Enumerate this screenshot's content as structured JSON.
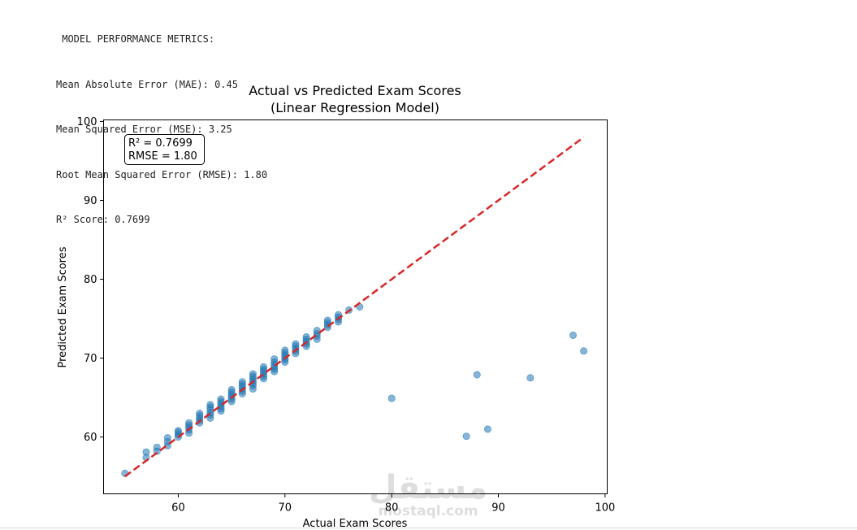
{
  "console": {
    "lines": [
      " MODEL PERFORMANCE METRICS:",
      "Mean Absolute Error (MAE): 0.45",
      "Mean Squared Error (MSE): 3.25",
      "Root Mean Squared Error (RMSE): 1.80",
      "R² Score: 0.7699"
    ]
  },
  "chart_data": {
    "type": "scatter",
    "title": "Actual vs Predicted Exam Scores",
    "subtitle": "(Linear Regression Model)",
    "xlabel": "Actual Exam Scores",
    "ylabel": "Predicted Exam Scores",
    "xlim": [
      53,
      100.2
    ],
    "ylim": [
      52.8,
      100.2
    ],
    "xticks": [
      60,
      70,
      80,
      90,
      100
    ],
    "yticks": [
      60,
      70,
      80,
      90,
      100
    ],
    "grid": false,
    "annotation": [
      "R² = 0.7699",
      "RMSE = 1.80"
    ],
    "point_color": "#1f77b4",
    "line_color": "#d62728",
    "reference_line": {
      "x": [
        55,
        98
      ],
      "y": [
        55,
        98
      ]
    },
    "watermark": {
      "arabic": "مستقل",
      "latin": "mostaql.com"
    },
    "points": [
      [
        55,
        55.4
      ],
      [
        57,
        57.4
      ],
      [
        57,
        58.1
      ],
      [
        58,
        58.2
      ],
      [
        58,
        58.7
      ],
      [
        59,
        58.9
      ],
      [
        59,
        59.4
      ],
      [
        59,
        59.9
      ],
      [
        60,
        60.0
      ],
      [
        60,
        60.3
      ],
      [
        60,
        60.6
      ],
      [
        60,
        60.8
      ],
      [
        61,
        60.5
      ],
      [
        61,
        60.9
      ],
      [
        61,
        61.2
      ],
      [
        61,
        61.5
      ],
      [
        61,
        61.8
      ],
      [
        62,
        61.8
      ],
      [
        62,
        62.1
      ],
      [
        62,
        62.4
      ],
      [
        62,
        62.7
      ],
      [
        62,
        63.0
      ],
      [
        63,
        62.4
      ],
      [
        63,
        62.8
      ],
      [
        63,
        63.1
      ],
      [
        63,
        63.5
      ],
      [
        63,
        63.8
      ],
      [
        63,
        64.1
      ],
      [
        64,
        63.3
      ],
      [
        64,
        63.6
      ],
      [
        64,
        63.9
      ],
      [
        64,
        64.2
      ],
      [
        64,
        64.5
      ],
      [
        64,
        64.8
      ],
      [
        65,
        64.5
      ],
      [
        65,
        64.8
      ],
      [
        65,
        65.1
      ],
      [
        65,
        65.4
      ],
      [
        65,
        65.7
      ],
      [
        65,
        66.0
      ],
      [
        66,
        65.5
      ],
      [
        66,
        65.8
      ],
      [
        66,
        66.1
      ],
      [
        66,
        66.4
      ],
      [
        66,
        66.7
      ],
      [
        66,
        67.0
      ],
      [
        67,
        66.1
      ],
      [
        67,
        66.5
      ],
      [
        67,
        66.8
      ],
      [
        67,
        67.1
      ],
      [
        67,
        67.4
      ],
      [
        67,
        67.7
      ],
      [
        67,
        68.0
      ],
      [
        68,
        67.4
      ],
      [
        68,
        67.7
      ],
      [
        68,
        68.0
      ],
      [
        68,
        68.3
      ],
      [
        68,
        68.6
      ],
      [
        68,
        68.9
      ],
      [
        69,
        68.3
      ],
      [
        69,
        68.6
      ],
      [
        69,
        68.9
      ],
      [
        69,
        69.2
      ],
      [
        69,
        69.5
      ],
      [
        69,
        69.9
      ],
      [
        70,
        69.5
      ],
      [
        70,
        69.8
      ],
      [
        70,
        70.1
      ],
      [
        70,
        70.4
      ],
      [
        70,
        70.7
      ],
      [
        70,
        71.0
      ],
      [
        71,
        70.6
      ],
      [
        71,
        70.9
      ],
      [
        71,
        71.2
      ],
      [
        71,
        71.5
      ],
      [
        71,
        71.8
      ],
      [
        72,
        71.5
      ],
      [
        72,
        71.8
      ],
      [
        72,
        72.1
      ],
      [
        72,
        72.4
      ],
      [
        72,
        72.7
      ],
      [
        73,
        72.4
      ],
      [
        73,
        72.8
      ],
      [
        73,
        73.1
      ],
      [
        73,
        73.5
      ],
      [
        74,
        73.9
      ],
      [
        74,
        74.2
      ],
      [
        74,
        74.5
      ],
      [
        74,
        74.8
      ],
      [
        75,
        74.6
      ],
      [
        75,
        74.9
      ],
      [
        75,
        75.2
      ],
      [
        75,
        75.5
      ],
      [
        76,
        76.1
      ],
      [
        77,
        76.5
      ],
      [
        80,
        64.9
      ],
      [
        87,
        60.1
      ],
      [
        88,
        67.9
      ],
      [
        89,
        61.0
      ],
      [
        93,
        67.5
      ],
      [
        97,
        72.9
      ],
      [
        98,
        70.9
      ]
    ]
  }
}
